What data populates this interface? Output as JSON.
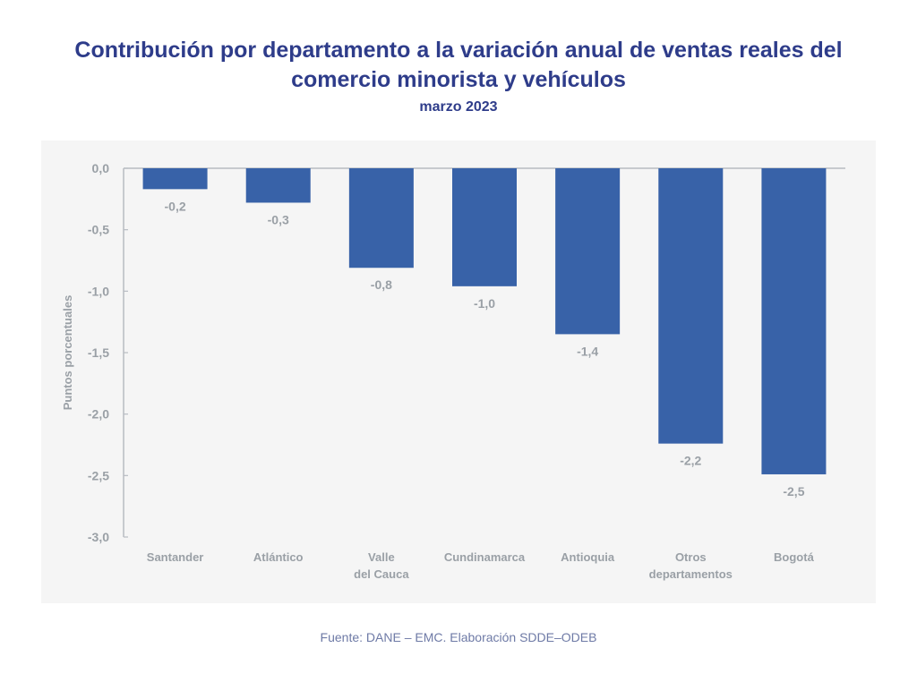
{
  "chart_data": {
    "type": "bar",
    "title": "Contribución por departamento a la variación anual de ventas reales del comercio minorista y vehículos",
    "title_lines": [
      "Contribución por departamento a la variación anual de ventas reales del",
      "comercio minorista y vehículos"
    ],
    "subtitle": "marzo 2023",
    "xlabel": "",
    "ylabel": "Puntos porcentuales",
    "ylim": [
      -3.0,
      0.0
    ],
    "yticks": [
      0.0,
      -0.5,
      -1.0,
      -1.5,
      -2.0,
      -2.5,
      -3.0
    ],
    "ytick_labels": [
      "0,0",
      "-0,5",
      "-1,0",
      "-1,5",
      "-2,0",
      "-2,5",
      "-3,0"
    ],
    "categories": [
      [
        "Santander"
      ],
      [
        "Atlántico"
      ],
      [
        "Valle",
        "del Cauca"
      ],
      [
        "Cundinamarca"
      ],
      [
        "Antioquia"
      ],
      [
        "Otros",
        "departamentos"
      ],
      [
        "Bogotá"
      ]
    ],
    "values": [
      -0.17,
      -0.28,
      -0.81,
      -0.96,
      -1.35,
      -2.24,
      -2.49
    ],
    "data_labels": [
      "-0,2",
      "-0,3",
      "-0,8",
      "-1,0",
      "-1,4",
      "-2,2",
      "-2,5"
    ],
    "grid": false,
    "legend": "none",
    "colors": {
      "bar": "#3862a8",
      "axis": "#b8bcc2",
      "tick_text": "#9aa0a6",
      "title": "#2e3c8a",
      "panel_bg": "#f5f5f5"
    }
  },
  "source_note": "Fuente: DANE – EMC. Elaboración SDDE–ODEB"
}
